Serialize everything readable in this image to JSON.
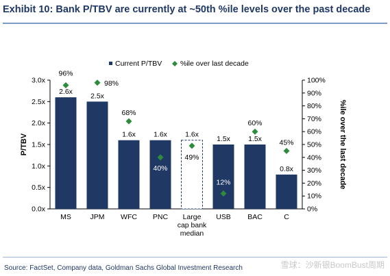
{
  "header": {
    "title": "Exhibit 10: Bank P/TBV are currently at ~50th %ile levels over the past decade"
  },
  "footer": {
    "source": "Source: FactSet, Company data, Goldman Sachs Global Investment Research",
    "watermark": "雪球：沙新银BoomBust周期"
  },
  "colors": {
    "bar": "#1f3864",
    "marker": "#2e8b3e",
    "median_border": "#1f3864"
  },
  "chart_data": {
    "type": "bar",
    "categories": [
      "MS",
      "JPM",
      "WFC",
      "PNC",
      "Large cap bank median",
      "USB",
      "BAC",
      "C"
    ],
    "category_lines": [
      [
        "MS"
      ],
      [
        "JPM"
      ],
      [
        "WFC"
      ],
      [
        "PNC"
      ],
      [
        "Large",
        "cap bank",
        "median"
      ],
      [
        "USB"
      ],
      [
        "BAC"
      ],
      [
        "C"
      ]
    ],
    "series": [
      {
        "name": "Current P/TBV",
        "axis": "left",
        "values": [
          2.6,
          2.5,
          1.6,
          1.6,
          1.6,
          1.5,
          1.5,
          0.8
        ],
        "labels": [
          "2.6x",
          "2.5x",
          "1.6x",
          "1.6x",
          "1.6x",
          "1.5x",
          "1.5x",
          "0.8x"
        ],
        "styles": [
          "solid",
          "solid",
          "solid",
          "solid",
          "dashed-outline",
          "solid",
          "solid",
          "solid"
        ]
      },
      {
        "name": "%ile over last decade",
        "axis": "right",
        "marker": "diamond",
        "values": [
          96,
          98,
          68,
          40,
          49,
          12,
          60,
          45
        ],
        "labels": [
          "96%",
          "98%",
          "68%",
          "40%",
          "49%",
          "12%",
          "60%",
          "45%"
        ]
      }
    ],
    "ylabel": "P/TBV",
    "ylabel_right": "%ile over the last decade",
    "ylim": [
      0,
      3.0
    ],
    "yticks": [
      "0.0x",
      "0.5x",
      "1.0x",
      "1.5x",
      "2.0x",
      "2.5x",
      "3.0x"
    ],
    "ylim_right": [
      0,
      100
    ],
    "yticks_right": [
      "0%",
      "10%",
      "20%",
      "30%",
      "40%",
      "50%",
      "60%",
      "70%",
      "80%",
      "90%",
      "100%"
    ],
    "legend_position": "top",
    "grid": false
  }
}
